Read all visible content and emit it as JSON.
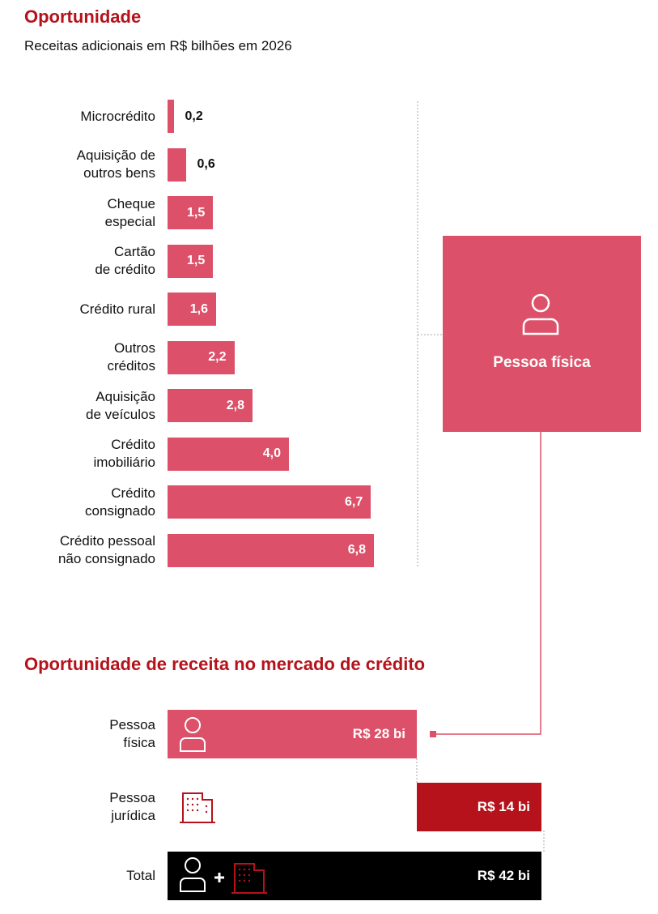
{
  "chart_data": [
    {
      "type": "bar",
      "orientation": "horizontal",
      "title": "Oportunidade",
      "subtitle": "Receitas adicionais em R$ bilhões em 2026",
      "categories": [
        "Microcrédito",
        "Aquisição de\noutros bens",
        "Cheque\nespecial",
        "Cartão\nde crédito",
        "Crédito rural",
        "Outros\ncréditos",
        "Aquisição\nde veículos",
        "Crédito\nimobiliário",
        "Crédito\nconsignado",
        "Crédito pessoal\nnão consignado"
      ],
      "values": [
        0.2,
        0.6,
        1.5,
        1.5,
        1.6,
        2.2,
        2.8,
        4.0,
        6.7,
        6.8
      ],
      "value_labels": [
        "0,2",
        "0,6",
        "1,5",
        "1,5",
        "1,6",
        "2,2",
        "2,8",
        "4,0",
        "6,7",
        "6,8"
      ],
      "color": "#dc5169",
      "callout": "Pessoa física"
    },
    {
      "type": "waterfall",
      "orientation": "horizontal",
      "title": "Oportunidade de receita no mercado de crédito",
      "categories": [
        "Pessoa\nfísica",
        "Pessoa\njurídica",
        "Total"
      ],
      "values": [
        28,
        14,
        42
      ],
      "value_labels": [
        "R$ 28 bi",
        "R$ 14 bi",
        "R$ 42 bi"
      ],
      "colors": [
        "#dc5169",
        "#b5121b",
        "#000000"
      ]
    }
  ]
}
